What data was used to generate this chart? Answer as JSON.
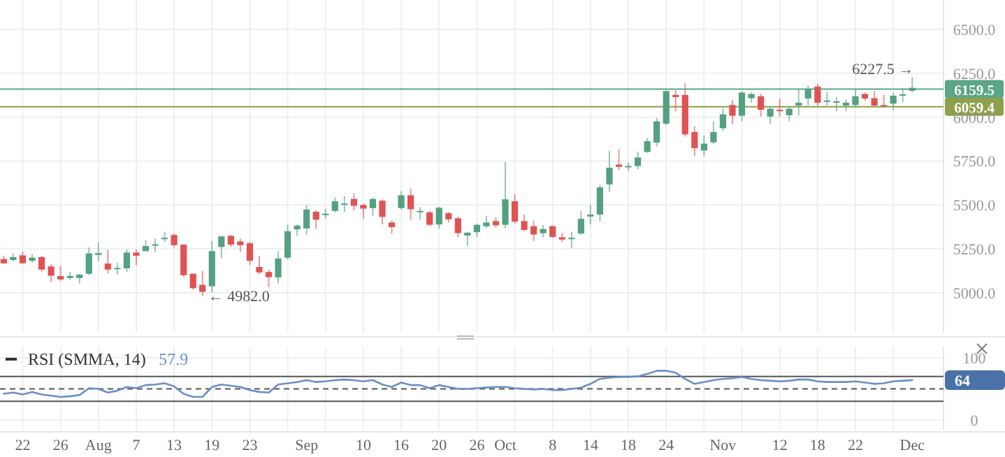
{
  "chart_data": [
    {
      "type": "candlestick",
      "categories": [
        null,
        null,
        null,
        null,
        null,
        null,
        null,
        null,
        null,
        null,
        null,
        null,
        null,
        null,
        null,
        null,
        null,
        null,
        null,
        null,
        null,
        null,
        null,
        null,
        null,
        null,
        null,
        null,
        null,
        null,
        null,
        null,
        null,
        null,
        null,
        null,
        null,
        null,
        null,
        null,
        null,
        null,
        null,
        null,
        null,
        null,
        null,
        null,
        null,
        null,
        null,
        null,
        null,
        null,
        null,
        null,
        null,
        null,
        null,
        null,
        null,
        null,
        null,
        null,
        null,
        null,
        null,
        null,
        null,
        null,
        null,
        null,
        null,
        null,
        null,
        null,
        null,
        null,
        null,
        null,
        null,
        null,
        null,
        null,
        null,
        null,
        null,
        null,
        null,
        null,
        null,
        null,
        null,
        null,
        null,
        null,
        null
      ],
      "ohlc": [
        [
          5192,
          5210,
          5163,
          5168
        ],
        [
          5187,
          5226,
          5179,
          5203
        ],
        [
          5213,
          5234,
          5163,
          5168
        ],
        [
          5182,
          5218,
          5171,
          5200
        ],
        [
          5203,
          5210,
          5118,
          5132
        ],
        [
          5150,
          5163,
          5060,
          5097
        ],
        [
          5095,
          5153,
          5068,
          5076
        ],
        [
          5084,
          5118,
          5074,
          5095
        ],
        [
          5084,
          5108,
          5053,
          5103
        ],
        [
          5108,
          5258,
          5100,
          5224
        ],
        [
          5216,
          5289,
          5179,
          5226
        ],
        [
          5166,
          5245,
          5110,
          5132
        ],
        [
          5137,
          5171,
          5105,
          5142
        ],
        [
          5139,
          5247,
          5118,
          5229
        ],
        [
          5229,
          5247,
          5158,
          5211
        ],
        [
          5237,
          5300,
          5237,
          5266
        ],
        [
          5271,
          5308,
          5232,
          5276
        ],
        [
          5310,
          5347,
          5289,
          5313
        ],
        [
          5329,
          5337,
          5258,
          5271
        ],
        [
          5274,
          5276,
          5089,
          5100
        ],
        [
          5108,
          5110,
          5018,
          5026
        ],
        [
          5045,
          5124,
          4982,
          5005
        ],
        [
          5037,
          5295,
          5000,
          5237
        ],
        [
          5261,
          5324,
          5197,
          5321
        ],
        [
          5324,
          5329,
          5261,
          5274
        ],
        [
          5292,
          5308,
          5232,
          5271
        ],
        [
          5282,
          5289,
          5158,
          5182
        ],
        [
          5147,
          5210,
          5105,
          5116
        ],
        [
          5118,
          5132,
          5032,
          5089
        ],
        [
          5087,
          5237,
          5053,
          5195
        ],
        [
          5200,
          5387,
          5189,
          5350
        ],
        [
          5361,
          5389,
          5324,
          5382
        ],
        [
          5366,
          5500,
          5329,
          5474
        ],
        [
          5461,
          5468,
          5363,
          5416
        ],
        [
          5447,
          5479,
          5421,
          5450
        ],
        [
          5466,
          5542,
          5458,
          5521
        ],
        [
          5503,
          5550,
          5461,
          5508
        ],
        [
          5534,
          5566,
          5468,
          5495
        ],
        [
          5500,
          5508,
          5421,
          5479
        ],
        [
          5482,
          5542,
          5439,
          5534
        ],
        [
          5524,
          5532,
          5389,
          5432
        ],
        [
          5400,
          5411,
          5337,
          5374
        ],
        [
          5482,
          5579,
          5474,
          5555
        ],
        [
          5555,
          5595,
          5416,
          5476
        ],
        [
          5461,
          5487,
          5416,
          5466
        ],
        [
          5458,
          5466,
          5379,
          5387
        ],
        [
          5389,
          5489,
          5366,
          5484
        ],
        [
          5453,
          5461,
          5400,
          5418
        ],
        [
          5424,
          5434,
          5316,
          5340
        ],
        [
          5326,
          5347,
          5266,
          5342
        ],
        [
          5345,
          5395,
          5318,
          5387
        ],
        [
          5379,
          5439,
          5368,
          5400
        ],
        [
          5408,
          5429,
          5371,
          5384
        ],
        [
          5387,
          5745,
          5368,
          5532
        ],
        [
          5521,
          5561,
          5395,
          5405
        ],
        [
          5408,
          5445,
          5350,
          5358
        ],
        [
          5379,
          5411,
          5295,
          5332
        ],
        [
          5339,
          5387,
          5316,
          5363
        ],
        [
          5379,
          5384,
          5311,
          5318
        ],
        [
          5316,
          5340,
          5289,
          5303
        ],
        [
          5308,
          5347,
          5255,
          5313
        ],
        [
          5337,
          5466,
          5329,
          5421
        ],
        [
          5434,
          5500,
          5389,
          5445
        ],
        [
          5445,
          5616,
          5405,
          5600
        ],
        [
          5617,
          5807,
          5574,
          5712
        ],
        [
          5730,
          5818,
          5699,
          5717
        ],
        [
          5718,
          5742,
          5695,
          5722
        ],
        [
          5722,
          5804,
          5704,
          5770
        ],
        [
          5802,
          5881,
          5797,
          5863
        ],
        [
          5855,
          5995,
          5833,
          5976
        ],
        [
          5963,
          6153,
          5955,
          6148
        ],
        [
          6127,
          6153,
          6034,
          6114
        ],
        [
          6127,
          6193,
          5889,
          5902
        ],
        [
          5915,
          5947,
          5778,
          5823
        ],
        [
          5810,
          5897,
          5778,
          5849
        ],
        [
          5857,
          5976,
          5849,
          5915
        ],
        [
          5937,
          6050,
          5923,
          6016
        ],
        [
          6069,
          6098,
          5960,
          6008
        ],
        [
          6008,
          6148,
          5976,
          6140
        ],
        [
          6108,
          6140,
          6082,
          6132
        ],
        [
          6119,
          6132,
          6003,
          6042
        ],
        [
          6003,
          6061,
          5960,
          6048
        ],
        [
          6042,
          6106,
          6003,
          6037
        ],
        [
          6011,
          6061,
          5976,
          6048
        ],
        [
          6066,
          6161,
          6008,
          6082
        ],
        [
          6106,
          6180,
          6066,
          6159
        ],
        [
          6174,
          6188,
          6066,
          6082
        ],
        [
          6090,
          6140,
          6066,
          6095
        ],
        [
          6085,
          6114,
          6034,
          6090
        ],
        [
          6066,
          6101,
          6034,
          6082
        ],
        [
          6069,
          6161,
          6061,
          6119
        ],
        [
          6132,
          6140,
          6093,
          6106
        ],
        [
          6108,
          6148,
          6061,
          6066
        ],
        [
          6069,
          6127,
          6061,
          6066
        ],
        [
          6077,
          6140,
          6040,
          6122
        ],
        [
          6127,
          6164,
          6085,
          6130
        ],
        [
          6150,
          6227.5,
          6140,
          6167
        ]
      ],
      "ylim": [
        4773,
        6667
      ],
      "yticks": [
        {
          "value": 5000,
          "label": "5000.0"
        },
        {
          "value": 5250,
          "label": "5250.0"
        },
        {
          "value": 5500,
          "label": "5500.0"
        },
        {
          "value": 5750,
          "label": "5750.0"
        },
        {
          "value": 6000,
          "label": "6000.0"
        },
        {
          "value": 6250,
          "label": "6250.0"
        },
        {
          "value": 6500,
          "label": "6500.0"
        }
      ],
      "grid": true,
      "tick_labels": "y",
      "ref_lines": [
        {
          "axis": "y",
          "value": 6159.5,
          "label": "6159.5",
          "color": "#5aa687"
        },
        {
          "axis": "y",
          "value": 6059.4,
          "label": "6059.4",
          "color": "#8da04a"
        }
      ],
      "annotations": [
        "6227.5 →",
        "← 4982.0"
      ]
    },
    {
      "type": "line",
      "title": "RSI (SMMA, 14)",
      "categories": [
        null,
        null,
        "22",
        null,
        null,
        null,
        "26",
        null,
        null,
        null,
        "Aug",
        null,
        null,
        null,
        "7",
        null,
        null,
        null,
        "13",
        null,
        null,
        null,
        "19",
        null,
        null,
        null,
        "23",
        null,
        null,
        null,
        null,
        null,
        "Sep",
        null,
        null,
        null,
        null,
        null,
        "10",
        null,
        null,
        null,
        "16",
        null,
        null,
        null,
        "20",
        null,
        null,
        null,
        "26",
        null,
        null,
        "Oct",
        null,
        null,
        null,
        null,
        "8",
        null,
        null,
        null,
        "14",
        null,
        null,
        null,
        "18",
        null,
        null,
        null,
        "24",
        null,
        null,
        null,
        null,
        null,
        "Nov",
        null,
        null,
        null,
        null,
        null,
        "12",
        null,
        null,
        null,
        "18",
        null,
        null,
        null,
        "22",
        null,
        null,
        null,
        null,
        null,
        "Dec"
      ],
      "series": [
        {
          "color": "#6a8fc7",
          "values": [
            42,
            44,
            41,
            45,
            41,
            39,
            37,
            38,
            40,
            51,
            50,
            44,
            47,
            53,
            51,
            56,
            57,
            59,
            54,
            42,
            37,
            37,
            53,
            57,
            55,
            53,
            48,
            45,
            44,
            57,
            59,
            61,
            64,
            61,
            62,
            64,
            65,
            64,
            62,
            64,
            57,
            53,
            60,
            56,
            56,
            51,
            56,
            53,
            50,
            50,
            51,
            52,
            53,
            53,
            51,
            50,
            49,
            50,
            48,
            48,
            50,
            52,
            58,
            66,
            68,
            69,
            69,
            70,
            74,
            79,
            79,
            76,
            66,
            58,
            61,
            64,
            66,
            67,
            69,
            66,
            64,
            63,
            62,
            63,
            65,
            65,
            62,
            61,
            61,
            61,
            62,
            60,
            58,
            59,
            62,
            63,
            64
          ]
        }
      ],
      "ylim": [
        -17,
        118
      ],
      "yticks": [
        0,
        100
      ],
      "grid": true,
      "ref_lines": [
        {
          "axis": "y",
          "value": 70,
          "color": "#555555",
          "line_style": "solid"
        },
        {
          "axis": "y",
          "value": 50,
          "color": "#555555",
          "line_style": "dashed"
        },
        {
          "axis": "y",
          "value": 30,
          "color": "#555555",
          "line_style": "solid"
        }
      ],
      "annotations": [
        "57.9",
        "64"
      ]
    }
  ]
}
